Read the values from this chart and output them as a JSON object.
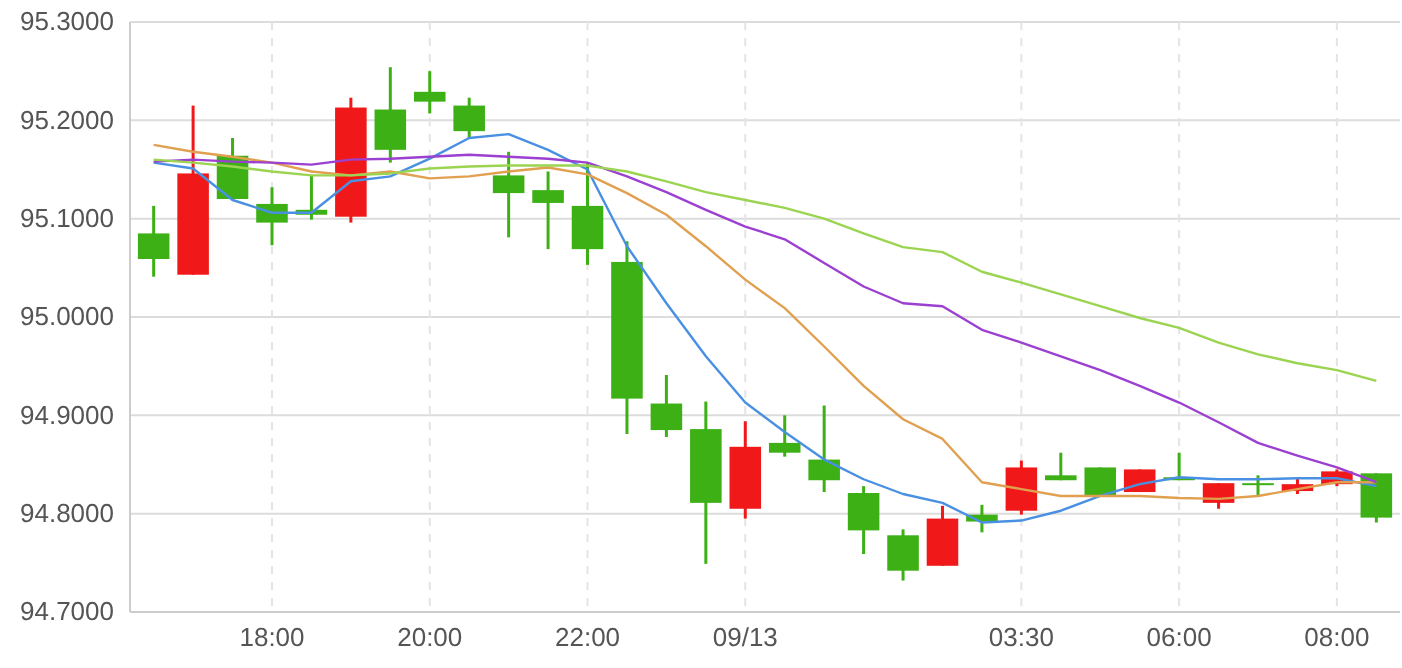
{
  "chart_data": {
    "type": "candlestick",
    "categories": [
      null,
      null,
      null,
      "18:00",
      null,
      null,
      null,
      "20:00",
      null,
      null,
      null,
      "22:00",
      null,
      null,
      null,
      "09/13",
      null,
      null,
      null,
      null,
      null,
      null,
      "03:30",
      null,
      null,
      null,
      "06:00",
      null,
      null,
      null,
      "08:00",
      null
    ],
    "ohlc": [
      [
        95.085,
        95.113,
        95.041,
        95.059
      ],
      [
        95.043,
        95.215,
        95.043,
        95.146
      ],
      [
        95.164,
        95.182,
        95.119,
        95.12
      ],
      [
        95.115,
        95.132,
        95.073,
        95.096
      ],
      [
        95.109,
        95.144,
        95.099,
        95.104
      ],
      [
        95.102,
        95.223,
        95.096,
        95.213
      ],
      [
        95.211,
        95.254,
        95.157,
        95.17
      ],
      [
        95.229,
        95.25,
        95.207,
        95.219
      ],
      [
        95.215,
        95.223,
        95.182,
        95.189
      ],
      [
        95.144,
        95.168,
        95.081,
        95.126
      ],
      [
        95.129,
        95.148,
        95.069,
        95.116
      ],
      [
        95.113,
        95.157,
        95.053,
        95.069
      ],
      [
        95.056,
        95.077,
        94.881,
        94.917
      ],
      [
        94.912,
        94.941,
        94.878,
        94.885
      ],
      [
        94.886,
        94.914,
        94.749,
        94.811
      ],
      [
        94.805,
        94.894,
        94.795,
        94.868
      ],
      [
        94.872,
        94.9,
        94.858,
        94.862
      ],
      [
        94.855,
        94.91,
        94.822,
        94.834
      ],
      [
        94.821,
        94.828,
        94.759,
        94.783
      ],
      [
        94.778,
        94.784,
        94.732,
        94.742
      ],
      [
        94.747,
        94.808,
        94.747,
        94.795
      ],
      [
        94.799,
        94.809,
        94.781,
        94.792
      ],
      [
        94.803,
        94.854,
        94.799,
        94.847
      ],
      [
        94.839,
        94.862,
        94.834,
        94.834
      ],
      [
        94.847,
        94.847,
        94.818,
        94.818
      ],
      [
        94.822,
        94.845,
        94.822,
        94.845
      ],
      [
        94.837,
        94.862,
        94.834,
        94.834
      ],
      [
        94.811,
        94.831,
        94.805,
        94.831
      ],
      [
        94.831,
        94.839,
        94.818,
        94.829
      ],
      [
        94.823,
        94.836,
        94.82,
        94.83
      ],
      [
        94.83,
        94.845,
        94.828,
        94.843
      ],
      [
        94.841,
        94.841,
        94.791,
        94.796
      ]
    ],
    "colors": [
      "#3cb014",
      "#f01818",
      "#3cb014",
      "#3cb014",
      "#3cb014",
      "#f01818",
      "#3cb014",
      "#3cb014",
      "#3cb014",
      "#3cb014",
      "#3cb014",
      "#3cb014",
      "#3cb014",
      "#3cb014",
      "#3cb014",
      "#f01818",
      "#3cb014",
      "#3cb014",
      "#3cb014",
      "#3cb014",
      "#f01818",
      "#3cb014",
      "#f01818",
      "#3cb014",
      "#3cb014",
      "#f01818",
      "#3cb014",
      "#f01818",
      "#3cb014",
      "#f01818",
      "#f01818",
      "#3cb014"
    ],
    "series": [
      {
        "type": "line",
        "color": "#4a90e2",
        "values": [
          95.157,
          95.151,
          95.119,
          95.106,
          95.106,
          95.138,
          95.143,
          95.161,
          95.182,
          95.186,
          95.17,
          95.15,
          95.072,
          95.014,
          94.96,
          94.913,
          94.883,
          94.855,
          94.835,
          94.82,
          94.811,
          94.791,
          94.793,
          94.803,
          94.818,
          94.83,
          94.837,
          94.835,
          94.835,
          94.836,
          94.836,
          94.828
        ]
      },
      {
        "type": "line",
        "color": "#e0a050",
        "values": [
          95.175,
          95.168,
          95.163,
          95.157,
          95.148,
          95.144,
          95.148,
          95.141,
          95.143,
          95.148,
          95.152,
          95.145,
          95.126,
          95.104,
          95.072,
          95.038,
          95.009,
          94.97,
          94.93,
          94.896,
          94.876,
          94.832,
          94.825,
          94.818,
          94.818,
          94.818,
          94.816,
          94.815,
          94.818,
          94.825,
          94.832,
          94.832
        ]
      },
      {
        "type": "line",
        "color": "#9b40d0",
        "values": [
          95.158,
          95.16,
          95.158,
          95.157,
          95.155,
          95.16,
          95.161,
          95.163,
          95.165,
          95.163,
          95.161,
          95.157,
          95.143,
          95.127,
          95.109,
          95.092,
          95.079,
          95.055,
          95.031,
          95.014,
          95.011,
          94.987,
          94.974,
          94.96,
          94.946,
          94.93,
          94.913,
          94.893,
          94.872,
          94.859,
          94.847,
          94.832
        ]
      },
      {
        "type": "line",
        "color": "#9ad450",
        "values": [
          95.16,
          95.157,
          95.153,
          95.148,
          95.144,
          95.144,
          95.146,
          95.151,
          95.153,
          95.154,
          95.154,
          95.154,
          95.148,
          95.138,
          95.127,
          95.119,
          95.111,
          95.1,
          95.085,
          95.071,
          95.066,
          95.046,
          95.035,
          95.023,
          95.011,
          94.999,
          94.989,
          94.974,
          94.962,
          94.953,
          94.946,
          94.935
        ]
      }
    ],
    "ylim": [
      94.7,
      95.3
    ],
    "yticks": [
      {
        "value": 94.7,
        "label": "94.7000"
      },
      {
        "value": 94.8,
        "label": "94.8000"
      },
      {
        "value": 94.9,
        "label": "94.9000"
      },
      {
        "value": 95.0,
        "label": "95.0000"
      },
      {
        "value": 95.1,
        "label": "95.1000"
      },
      {
        "value": 95.2,
        "label": "95.2000"
      },
      {
        "value": 95.3,
        "label": "95.3000"
      }
    ],
    "grid": true,
    "line_style": "solid"
  }
}
